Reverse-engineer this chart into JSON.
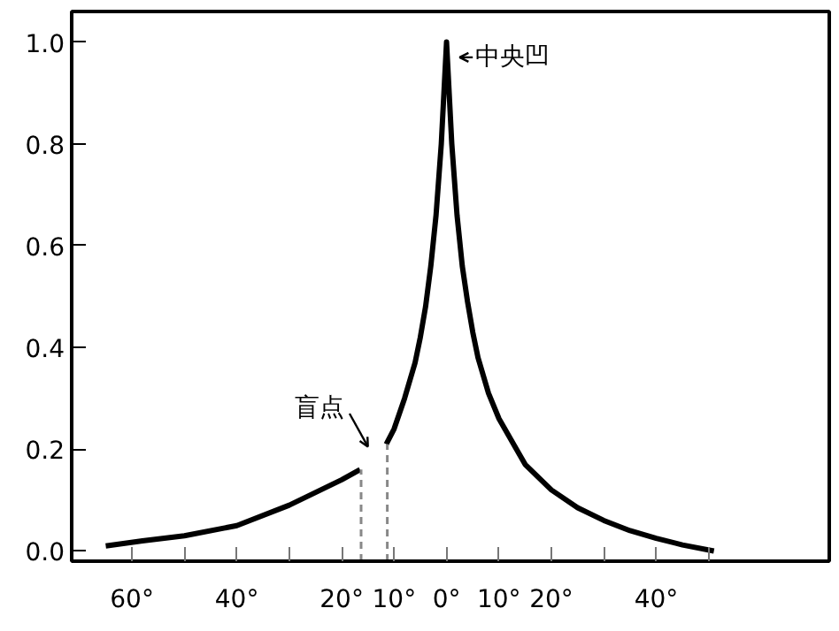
{
  "chart_data": {
    "type": "line",
    "x": [
      -65,
      -58,
      -50,
      -40,
      -30,
      -20,
      -16.5,
      null,
      -11.5,
      -10,
      -8,
      -6,
      -5,
      -4,
      -3,
      -2,
      -1,
      -0.4,
      0,
      0.4,
      1,
      2,
      3,
      4,
      5,
      6,
      8,
      10,
      15,
      20,
      25,
      30,
      35,
      40,
      45,
      51
    ],
    "series": [
      {
        "color": "#000000",
        "values": [
          0.01,
          0.02,
          0.03,
          0.05,
          0.09,
          0.14,
          0.16,
          null,
          0.21,
          0.24,
          0.3,
          0.37,
          0.42,
          0.48,
          0.56,
          0.66,
          0.8,
          0.92,
          1.0,
          0.92,
          0.8,
          0.66,
          0.56,
          0.49,
          0.43,
          0.38,
          0.31,
          0.26,
          0.17,
          0.12,
          0.085,
          0.06,
          0.04,
          0.025,
          0.012,
          0.0
        ]
      }
    ],
    "xlim": [
      -71.5,
      73
    ],
    "ylim": [
      -0.02,
      1.06
    ],
    "xticks": [
      {
        "value": -60,
        "label": "60°"
      },
      {
        "value": -50,
        "label": null
      },
      {
        "value": -40,
        "label": "40°"
      },
      {
        "value": -30,
        "label": null
      },
      {
        "value": -20,
        "label": "20°"
      },
      {
        "value": -10,
        "label": "10°"
      },
      {
        "value": 0,
        "label": "0°"
      },
      {
        "value": 10,
        "label": "10°"
      },
      {
        "value": 20,
        "label": "20°"
      },
      {
        "value": 30,
        "label": null
      },
      {
        "value": 40,
        "label": "40°"
      },
      {
        "value": 50,
        "label": null
      }
    ],
    "yticks": [
      {
        "value": 0,
        "label": "0.0"
      },
      {
        "value": 0.2,
        "label": "0.2"
      },
      {
        "value": 0.4,
        "label": "0.4"
      },
      {
        "value": 0.6,
        "label": "0.6"
      },
      {
        "value": 0.8,
        "label": "0.8"
      },
      {
        "value": 1.0,
        "label": "1.0"
      }
    ],
    "ref_lines": [
      {
        "axis": "x",
        "value": -16.3,
        "color": "#888888",
        "line_style": "dashed"
      },
      {
        "axis": "x",
        "value": -11.3,
        "color": "#888888",
        "line_style": "dashed"
      }
    ],
    "annotations": [
      {
        "text": "中央凹",
        "x": 0,
        "y": 1.0
      },
      {
        "text": "盲点",
        "x": -16.5,
        "y": 0.16
      }
    ],
    "grid": false,
    "marker": "none",
    "line_style": "solid"
  }
}
